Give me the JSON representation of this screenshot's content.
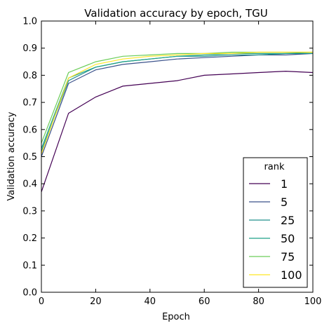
{
  "chart_data": {
    "type": "line",
    "title": "Validation accuracy by epoch, TGU",
    "xlabel": "Epoch",
    "ylabel": "Validation accuracy",
    "xlim": [
      0,
      100
    ],
    "ylim": [
      0.0,
      1.0
    ],
    "grid": false,
    "legend": {
      "title": "rank",
      "position": "bottom-right"
    },
    "x_ticks": [
      "0",
      "20",
      "40",
      "60",
      "80",
      "100"
    ],
    "y_ticks": [
      "0.0",
      "0.1",
      "0.2",
      "0.3",
      "0.4",
      "0.5",
      "0.6",
      "0.7",
      "0.8",
      "0.9",
      "1.0"
    ],
    "x": [
      0,
      10,
      20,
      30,
      40,
      50,
      60,
      70,
      80,
      90,
      100
    ],
    "series": [
      {
        "name": "1",
        "color": "#440154",
        "values": [
          0.37,
          0.66,
          0.72,
          0.76,
          0.77,
          0.78,
          0.8,
          0.805,
          0.81,
          0.815,
          0.81
        ]
      },
      {
        "name": "5",
        "color": "#3b528b",
        "values": [
          0.5,
          0.77,
          0.82,
          0.84,
          0.85,
          0.86,
          0.865,
          0.87,
          0.875,
          0.875,
          0.88
        ]
      },
      {
        "name": "25",
        "color": "#21918c",
        "values": [
          0.52,
          0.78,
          0.83,
          0.85,
          0.86,
          0.87,
          0.87,
          0.875,
          0.875,
          0.88,
          0.88
        ]
      },
      {
        "name": "50",
        "color": "#1fa187",
        "values": [
          0.53,
          0.79,
          0.83,
          0.85,
          0.86,
          0.87,
          0.875,
          0.88,
          0.88,
          0.88,
          0.885
        ]
      },
      {
        "name": "75",
        "color": "#6ccd5a",
        "values": [
          0.55,
          0.81,
          0.85,
          0.87,
          0.875,
          0.88,
          0.88,
          0.885,
          0.885,
          0.885,
          0.885
        ]
      },
      {
        "name": "100",
        "color": "#fde725",
        "values": [
          0.51,
          0.79,
          0.84,
          0.86,
          0.87,
          0.875,
          0.88,
          0.88,
          0.885,
          0.885,
          0.885
        ]
      }
    ]
  }
}
